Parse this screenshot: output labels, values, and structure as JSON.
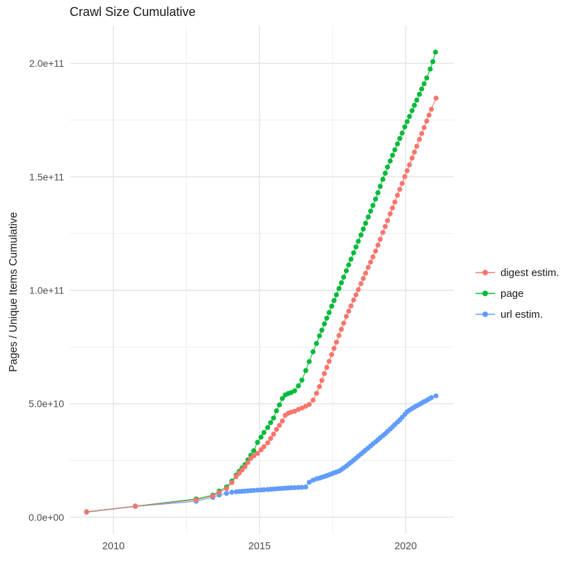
{
  "title": "Crawl Size Cumulative",
  "y_axis": {
    "label": "Pages / Unique Items Cumulative",
    "major_ticks": [
      {
        "value": 0,
        "label": "0.0e+00"
      },
      {
        "value": 50,
        "label": "5.0e+10"
      },
      {
        "value": 100,
        "label": "1.0e+11"
      },
      {
        "value": 150,
        "label": "1.5e+11"
      },
      {
        "value": 200,
        "label": "2.0e+11"
      }
    ],
    "minor_ticks": [
      25,
      75,
      125,
      175
    ]
  },
  "x_axis": {
    "label": "",
    "major_ticks": [
      {
        "value": 2010,
        "label": "2010"
      },
      {
        "value": 2015,
        "label": "2015"
      },
      {
        "value": 2020,
        "label": "2020"
      }
    ],
    "minor_ticks": [
      2012.5,
      2017.5
    ]
  },
  "style": {
    "grid_major_color": "#e3e3e3",
    "grid_minor_color": "#ebebeb",
    "tick_text_color": "#4d4d4d",
    "label_text_color": "#1a1a1a",
    "background": "#ffffff"
  },
  "chart_data": {
    "type": "line",
    "title": "Crawl Size Cumulative",
    "xlabel": "",
    "ylabel": "Pages / Unique Items Cumulative",
    "value_unit": "1e9 (billions of pages / unique items)",
    "x_range": [
      2008.5,
      2021.65
    ],
    "y_range_1e9": [
      -7.4,
      216.6
    ],
    "grid": "major+minor",
    "legend_position": "right",
    "draw_order": [
      1,
      2,
      0
    ],
    "marker_radius": 3.6,
    "line_width": 1.1,
    "series": [
      {
        "name": "digest estim.",
        "color": "#F8766D",
        "points": [
          [
            2009.08,
            2.3
          ],
          [
            2010.75,
            4.8
          ],
          [
            2012.83,
            7.6
          ],
          [
            2013.4,
            9.3
          ],
          [
            2013.62,
            10.9
          ],
          [
            2013.87,
            12.6
          ],
          [
            2014.05,
            15.2
          ],
          [
            2014.2,
            17.9
          ],
          [
            2014.3,
            19.4
          ],
          [
            2014.4,
            20.8
          ],
          [
            2014.5,
            22.2
          ],
          [
            2014.6,
            24.1
          ],
          [
            2014.7,
            25.9
          ],
          [
            2014.8,
            27.0
          ],
          [
            2014.93,
            28.1
          ],
          [
            2015.05,
            29.7
          ],
          [
            2015.15,
            31.1
          ],
          [
            2015.28,
            32.8
          ],
          [
            2015.38,
            34.7
          ],
          [
            2015.48,
            36.6
          ],
          [
            2015.58,
            38.7
          ],
          [
            2015.68,
            40.5
          ],
          [
            2015.78,
            42.4
          ],
          [
            2015.88,
            44.9
          ],
          [
            2015.98,
            45.8
          ],
          [
            2016.08,
            46.3
          ],
          [
            2016.2,
            46.7
          ],
          [
            2016.33,
            47.5
          ],
          [
            2016.45,
            48.1
          ],
          [
            2016.58,
            48.9
          ],
          [
            2016.7,
            49.7
          ],
          [
            2016.83,
            51.6
          ],
          [
            2016.95,
            54.6
          ],
          [
            2017.05,
            57.6
          ],
          [
            2017.13,
            60.3
          ],
          [
            2017.22,
            63.3
          ],
          [
            2017.3,
            66.0
          ],
          [
            2017.38,
            68.7
          ],
          [
            2017.47,
            71.7
          ],
          [
            2017.55,
            74.4
          ],
          [
            2017.63,
            77.1
          ],
          [
            2017.72,
            80.1
          ],
          [
            2017.8,
            82.8
          ],
          [
            2017.88,
            85.5
          ],
          [
            2017.97,
            88.5
          ],
          [
            2018.05,
            90.8
          ],
          [
            2018.13,
            93.1
          ],
          [
            2018.22,
            95.7
          ],
          [
            2018.3,
            98.0
          ],
          [
            2018.38,
            100.3
          ],
          [
            2018.47,
            102.9
          ],
          [
            2018.55,
            105.2
          ],
          [
            2018.63,
            107.5
          ],
          [
            2018.72,
            110.1
          ],
          [
            2018.8,
            112.4
          ],
          [
            2018.88,
            114.7
          ],
          [
            2018.97,
            117.3
          ],
          [
            2019.05,
            119.9
          ],
          [
            2019.13,
            122.5
          ],
          [
            2019.22,
            125.5
          ],
          [
            2019.3,
            128.1
          ],
          [
            2019.38,
            130.7
          ],
          [
            2019.47,
            133.7
          ],
          [
            2019.55,
            136.3
          ],
          [
            2019.63,
            138.9
          ],
          [
            2019.72,
            141.9
          ],
          [
            2019.8,
            144.5
          ],
          [
            2019.88,
            147.1
          ],
          [
            2019.97,
            150.1
          ],
          [
            2020.05,
            152.7
          ],
          [
            2020.13,
            155.3
          ],
          [
            2020.22,
            158.3
          ],
          [
            2020.3,
            160.9
          ],
          [
            2020.38,
            163.5
          ],
          [
            2020.47,
            166.5
          ],
          [
            2020.55,
            169.1
          ],
          [
            2020.63,
            171.7
          ],
          [
            2020.72,
            174.6
          ],
          [
            2020.8,
            177.2
          ],
          [
            2020.88,
            179.8
          ],
          [
            2021.04,
            184.7
          ]
        ]
      },
      {
        "name": "page",
        "color": "#00BA38",
        "points": [
          [
            2009.08,
            2.4
          ],
          [
            2010.75,
            4.9
          ],
          [
            2012.83,
            8.0
          ],
          [
            2013.4,
            9.7
          ],
          [
            2013.62,
            11.5
          ],
          [
            2013.87,
            13.3
          ],
          [
            2014.05,
            15.9
          ],
          [
            2014.2,
            18.6
          ],
          [
            2014.3,
            20.2
          ],
          [
            2014.4,
            21.7
          ],
          [
            2014.5,
            23.2
          ],
          [
            2014.6,
            25.3
          ],
          [
            2014.7,
            27.3
          ],
          [
            2014.8,
            29.3
          ],
          [
            2014.93,
            33.0
          ],
          [
            2015.05,
            35.3
          ],
          [
            2015.15,
            37.3
          ],
          [
            2015.28,
            39.5
          ],
          [
            2015.38,
            41.7
          ],
          [
            2015.48,
            43.7
          ],
          [
            2015.58,
            46.9
          ],
          [
            2015.68,
            49.5
          ],
          [
            2015.78,
            52.3
          ],
          [
            2015.88,
            53.9
          ],
          [
            2015.98,
            54.5
          ],
          [
            2016.08,
            54.9
          ],
          [
            2016.2,
            55.7
          ],
          [
            2016.33,
            57.9
          ],
          [
            2016.45,
            60.4
          ],
          [
            2016.58,
            64.6
          ],
          [
            2016.7,
            68.6
          ],
          [
            2016.83,
            72.9
          ],
          [
            2016.95,
            76.6
          ],
          [
            2017.05,
            79.9
          ],
          [
            2017.13,
            82.4
          ],
          [
            2017.22,
            85.2
          ],
          [
            2017.3,
            87.7
          ],
          [
            2017.38,
            90.2
          ],
          [
            2017.47,
            93.0
          ],
          [
            2017.55,
            95.5
          ],
          [
            2017.63,
            98.0
          ],
          [
            2017.72,
            100.8
          ],
          [
            2017.8,
            103.3
          ],
          [
            2017.88,
            105.8
          ],
          [
            2017.97,
            108.6
          ],
          [
            2018.05,
            111.2
          ],
          [
            2018.13,
            113.7
          ],
          [
            2018.22,
            116.5
          ],
          [
            2018.3,
            119.1
          ],
          [
            2018.38,
            121.6
          ],
          [
            2018.47,
            124.4
          ],
          [
            2018.55,
            127.0
          ],
          [
            2018.63,
            129.5
          ],
          [
            2018.72,
            132.3
          ],
          [
            2018.8,
            134.9
          ],
          [
            2018.88,
            137.4
          ],
          [
            2018.97,
            140.2
          ],
          [
            2019.05,
            143.0
          ],
          [
            2019.13,
            145.8
          ],
          [
            2019.22,
            148.9
          ],
          [
            2019.3,
            151.6
          ],
          [
            2019.38,
            154.3
          ],
          [
            2019.47,
            157.0
          ],
          [
            2019.55,
            159.5
          ],
          [
            2019.63,
            161.9
          ],
          [
            2019.72,
            164.5
          ],
          [
            2019.8,
            166.9
          ],
          [
            2019.88,
            169.3
          ],
          [
            2019.97,
            172.0
          ],
          [
            2020.05,
            174.3
          ],
          [
            2020.13,
            176.6
          ],
          [
            2020.22,
            179.2
          ],
          [
            2020.3,
            181.5
          ],
          [
            2020.38,
            183.8
          ],
          [
            2020.47,
            186.4
          ],
          [
            2020.55,
            188.7
          ],
          [
            2020.63,
            191.0
          ],
          [
            2020.72,
            193.6
          ],
          [
            2020.84,
            197.5
          ],
          [
            2020.93,
            200.8
          ],
          [
            2021.02,
            205.0
          ]
        ]
      },
      {
        "name": "url estim.",
        "color": "#619CFF",
        "points": [
          [
            2009.08,
            2.2
          ],
          [
            2010.75,
            4.7
          ],
          [
            2012.83,
            7.0
          ],
          [
            2013.4,
            8.7
          ],
          [
            2013.62,
            9.8
          ],
          [
            2013.87,
            10.5
          ],
          [
            2014.05,
            11.0
          ],
          [
            2014.2,
            11.2
          ],
          [
            2014.3,
            11.3
          ],
          [
            2014.4,
            11.4
          ],
          [
            2014.5,
            11.5
          ],
          [
            2014.6,
            11.6
          ],
          [
            2014.7,
            11.7
          ],
          [
            2014.8,
            11.8
          ],
          [
            2014.93,
            11.9
          ],
          [
            2015.05,
            12.0
          ],
          [
            2015.15,
            12.1
          ],
          [
            2015.28,
            12.2
          ],
          [
            2015.38,
            12.3
          ],
          [
            2015.48,
            12.4
          ],
          [
            2015.58,
            12.5
          ],
          [
            2015.68,
            12.6
          ],
          [
            2015.78,
            12.7
          ],
          [
            2015.88,
            12.8
          ],
          [
            2015.98,
            12.9
          ],
          [
            2016.08,
            12.95
          ],
          [
            2016.2,
            13.0
          ],
          [
            2016.33,
            13.1
          ],
          [
            2016.45,
            13.2
          ],
          [
            2016.58,
            13.3
          ],
          [
            2016.7,
            15.4
          ],
          [
            2016.83,
            16.3
          ],
          [
            2016.95,
            16.9
          ],
          [
            2017.05,
            17.2
          ],
          [
            2017.13,
            17.6
          ],
          [
            2017.22,
            17.9
          ],
          [
            2017.3,
            18.3
          ],
          [
            2017.38,
            18.7
          ],
          [
            2017.47,
            19.1
          ],
          [
            2017.55,
            19.5
          ],
          [
            2017.63,
            19.9
          ],
          [
            2017.72,
            20.3
          ],
          [
            2017.8,
            21.0
          ],
          [
            2017.88,
            21.7
          ],
          [
            2017.97,
            22.5
          ],
          [
            2018.05,
            23.4
          ],
          [
            2018.13,
            24.2
          ],
          [
            2018.22,
            25.1
          ],
          [
            2018.3,
            26.0
          ],
          [
            2018.38,
            26.9
          ],
          [
            2018.47,
            27.8
          ],
          [
            2018.55,
            28.7
          ],
          [
            2018.63,
            29.6
          ],
          [
            2018.72,
            30.5
          ],
          [
            2018.8,
            31.4
          ],
          [
            2018.88,
            32.3
          ],
          [
            2018.97,
            33.2
          ],
          [
            2019.05,
            34.1
          ],
          [
            2019.13,
            35.0
          ],
          [
            2019.22,
            35.9
          ],
          [
            2019.3,
            36.8
          ],
          [
            2019.38,
            37.8
          ],
          [
            2019.47,
            38.8
          ],
          [
            2019.55,
            39.8
          ],
          [
            2019.63,
            40.8
          ],
          [
            2019.72,
            41.9
          ],
          [
            2019.8,
            42.9
          ],
          [
            2019.88,
            44.0
          ],
          [
            2019.97,
            45.3
          ],
          [
            2020.05,
            46.4
          ],
          [
            2020.13,
            47.2
          ],
          [
            2020.22,
            47.9
          ],
          [
            2020.3,
            48.5
          ],
          [
            2020.38,
            49.1
          ],
          [
            2020.47,
            49.7
          ],
          [
            2020.55,
            50.3
          ],
          [
            2020.63,
            50.9
          ],
          [
            2020.72,
            51.5
          ],
          [
            2020.8,
            52.1
          ],
          [
            2020.88,
            52.7
          ],
          [
            2021.04,
            53.5
          ]
        ]
      }
    ]
  },
  "legend": {
    "items": [
      {
        "label": "digest estim.",
        "color": "#F8766D"
      },
      {
        "label": "page",
        "color": "#00BA38"
      },
      {
        "label": "url estim.",
        "color": "#619CFF"
      }
    ]
  }
}
